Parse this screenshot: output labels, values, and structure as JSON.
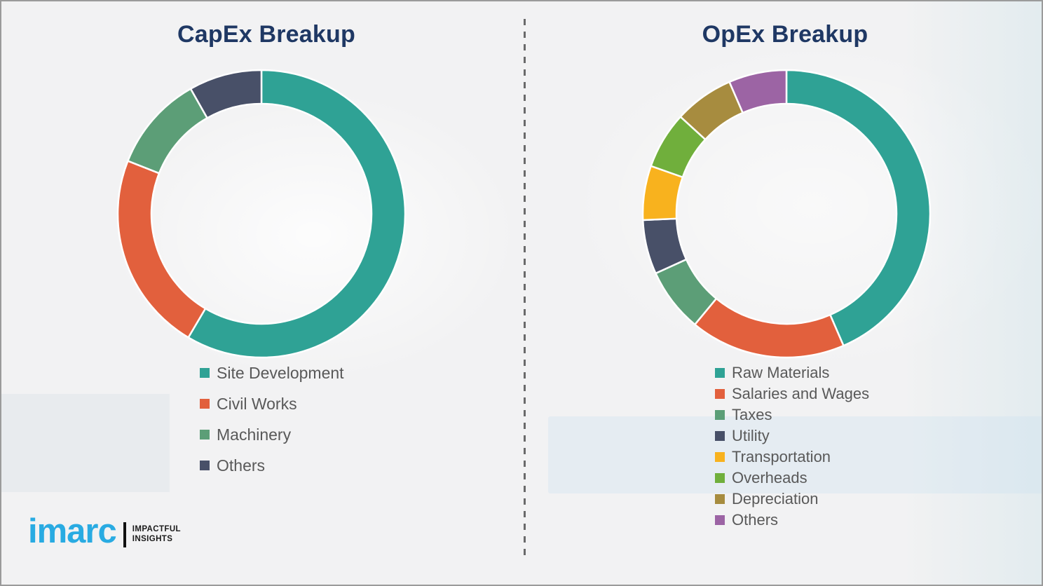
{
  "page": {
    "background": "#f2f2f3",
    "border_color": "#9b9b9b",
    "divider_color": "#6a6a6a",
    "title_color": "#1f3864",
    "legend_text_color": "#595959"
  },
  "chart_data": [
    {
      "type": "pie",
      "variant": "donut",
      "title": "CapEx Breakup",
      "labels": [
        "Site Development",
        "Civil Works",
        "Machinery",
        "Others"
      ],
      "values": [
        58.5,
        22.5,
        10.8,
        8.2
      ],
      "colors": [
        "#2fa295",
        "#e2603d",
        "#5c9e77",
        "#485068"
      ],
      "start_angle_deg": 0,
      "direction": "clockwise",
      "legend_position": "below-left"
    },
    {
      "type": "pie",
      "variant": "donut",
      "title": "OpEx Breakup",
      "labels": [
        "Raw Materials",
        "Salaries and Wages",
        "Taxes",
        "Utility",
        "Transportation",
        "Overheads",
        "Depreciation",
        "Others"
      ],
      "values": [
        43.5,
        17.5,
        7.2,
        6.1,
        6.1,
        6.4,
        6.7,
        6.5
      ],
      "colors": [
        "#2fa295",
        "#e2603d",
        "#5c9e77",
        "#485068",
        "#f8b21e",
        "#70af3c",
        "#a78c3f",
        "#9c64a4"
      ],
      "start_angle_deg": 0,
      "direction": "clockwise",
      "legend_position": "below-left"
    }
  ],
  "logo": {
    "brand": "imarc",
    "brand_color": "#29abe2",
    "tagline_line1": "IMPACTFUL",
    "tagline_line2": "INSIGHTS"
  }
}
